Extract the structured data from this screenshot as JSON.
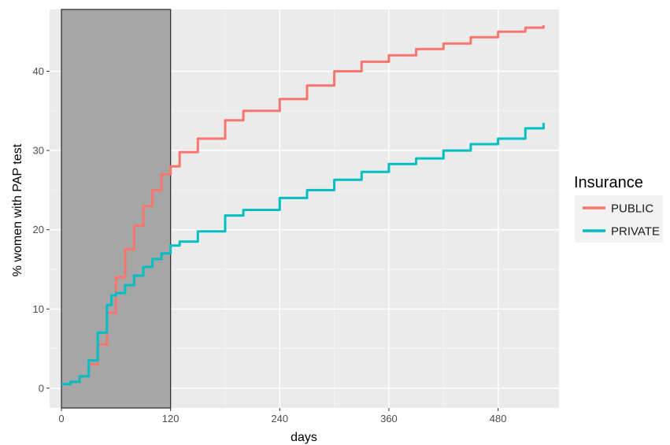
{
  "chart_data": {
    "type": "line",
    "title": "",
    "xlabel": "days",
    "ylabel": "% women with PAP test",
    "xlim": [
      -13,
      547
    ],
    "ylim": [
      -2.5,
      47.8
    ],
    "x_ticks": [
      0,
      120,
      240,
      360,
      480
    ],
    "x_tick_labels": [
      "0",
      "120",
      "240",
      "360",
      "480"
    ],
    "y_ticks": [
      0,
      10,
      20,
      30,
      40
    ],
    "y_tick_labels": [
      "0",
      "10",
      "20",
      "30",
      "40"
    ],
    "grid": true,
    "panel_background": "#ebebeb",
    "shaded_region": {
      "x": [
        0,
        120
      ],
      "color": "#a6a6a6"
    },
    "legend": {
      "title": "Insurance",
      "placement": "right",
      "entries": [
        "PUBLIC",
        "PRIVATE"
      ]
    },
    "series": [
      {
        "name": "PUBLIC",
        "color": "#f8766d",
        "x": [
          0,
          10,
          20,
          30,
          40,
          50,
          60,
          70,
          80,
          90,
          100,
          110,
          120,
          130,
          150,
          180,
          200,
          240,
          270,
          300,
          330,
          360,
          390,
          420,
          450,
          480,
          510,
          530
        ],
        "y": [
          0.5,
          0.8,
          1.5,
          3.0,
          5.5,
          9.5,
          14.0,
          17.5,
          20.5,
          23.0,
          25.0,
          27.0,
          28.0,
          29.8,
          31.5,
          33.8,
          35.0,
          36.5,
          38.2,
          40.0,
          41.2,
          42.0,
          42.8,
          43.5,
          44.3,
          45.0,
          45.5,
          45.8
        ]
      },
      {
        "name": "PRIVATE",
        "color": "#00bfc4",
        "x": [
          0,
          10,
          20,
          30,
          40,
          50,
          55,
          60,
          70,
          80,
          90,
          100,
          110,
          120,
          130,
          150,
          180,
          200,
          240,
          270,
          300,
          330,
          360,
          390,
          420,
          450,
          480,
          510,
          530
        ],
        "y": [
          0.5,
          0.8,
          1.5,
          3.5,
          7.0,
          10.5,
          11.7,
          12.0,
          13.0,
          14.2,
          15.3,
          16.3,
          17.0,
          18.0,
          18.5,
          19.8,
          21.8,
          22.5,
          24.0,
          25.0,
          26.3,
          27.3,
          28.3,
          29.0,
          30.0,
          30.8,
          31.5,
          32.8,
          33.5
        ]
      }
    ]
  }
}
